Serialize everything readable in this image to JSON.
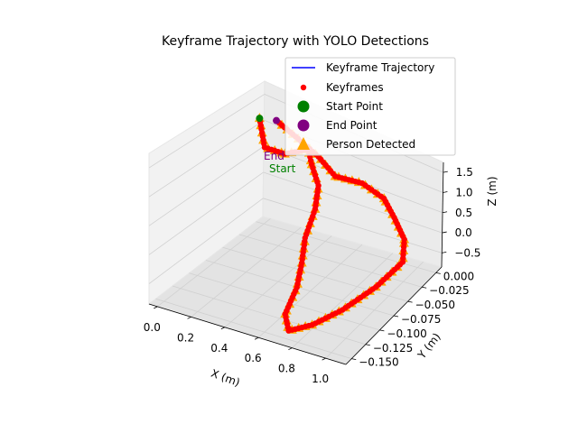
{
  "chart_data": {
    "type": "scatter",
    "projection": "3d",
    "title": "Keyframe Trajectory with YOLO Detections",
    "xlabel": "X (m)",
    "ylabel": "Y (m)",
    "zlabel": "Z (m)",
    "xlim": [
      -0.05,
      1.12
    ],
    "ylim": [
      -0.16,
      0.01
    ],
    "zlim": [
      -0.85,
      1.75
    ],
    "x_ticks": [
      "0.0",
      "0.2",
      "0.4",
      "0.6",
      "0.8",
      "1.0"
    ],
    "y_ticks": [
      "0.000",
      "−0.025",
      "−0.050",
      "−0.075",
      "−0.100",
      "−0.125",
      "−0.150"
    ],
    "z_ticks": [
      "1.5",
      "1.0",
      "0.5",
      "0.0",
      "−0.5"
    ],
    "grid": true,
    "legend_position": "top-right",
    "legend": [
      {
        "label": "Keyframe Trajectory",
        "marker": "line",
        "color": "#0000ff"
      },
      {
        "label": "Keyframes",
        "marker": "small-circle",
        "color": "#ff0000"
      },
      {
        "label": "Start Point",
        "marker": "circle",
        "color": "#008000"
      },
      {
        "label": "End Point",
        "marker": "circle",
        "color": "#800080"
      },
      {
        "label": "Person Detected",
        "marker": "triangle",
        "color": "#ffa500"
      }
    ],
    "annotations": [
      {
        "text": "Start",
        "color": "#008000"
      },
      {
        "text": "End",
        "color": "#800080"
      }
    ],
    "trajectory_xyz": [
      [
        0.05,
        -0.02,
        1.2
      ],
      [
        0.12,
        -0.03,
        0.85
      ],
      [
        0.2,
        -0.02,
        0.72
      ],
      [
        0.3,
        -0.01,
        0.8
      ],
      [
        0.36,
        -0.02,
        0.68
      ],
      [
        0.4,
        -0.02,
        0.35
      ],
      [
        0.42,
        -0.03,
        0.05
      ],
      [
        0.44,
        -0.05,
        -0.25
      ],
      [
        0.5,
        -0.07,
        -0.45
      ],
      [
        0.55,
        -0.09,
        -0.65
      ],
      [
        0.6,
        -0.12,
        -0.8
      ],
      [
        0.7,
        -0.14,
        -0.82
      ],
      [
        0.8,
        -0.13,
        -0.72
      ],
      [
        0.9,
        -0.11,
        -0.55
      ],
      [
        0.98,
        -0.08,
        -0.35
      ],
      [
        1.02,
        -0.05,
        -0.15
      ],
      [
        0.95,
        -0.03,
        0.0
      ],
      [
        0.85,
        -0.02,
        0.2
      ],
      [
        0.75,
        -0.01,
        0.35
      ],
      [
        0.62,
        -0.01,
        0.5
      ],
      [
        0.5,
        -0.02,
        0.6
      ],
      [
        0.4,
        -0.02,
        0.85
      ],
      [
        0.28,
        -0.02,
        1.05
      ],
      [
        0.15,
        -0.02,
        1.25
      ]
    ],
    "colors": {
      "trajectory": "#0000ff",
      "keyframes": "#ff0000",
      "start": "#008000",
      "end": "#800080",
      "person": "#ffa500",
      "pane": "#f2f2f2"
    }
  }
}
